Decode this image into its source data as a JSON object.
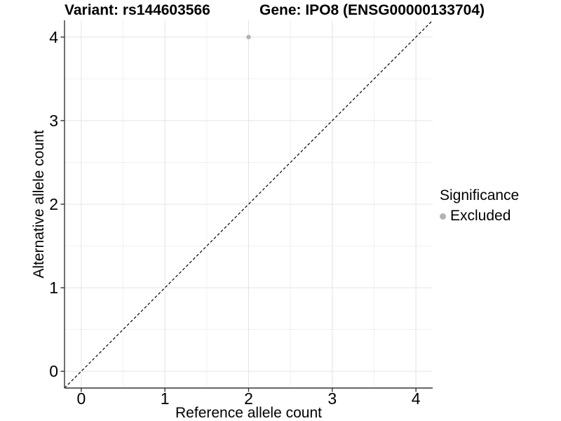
{
  "titles": {
    "variant": "Variant: rs144603566",
    "gene": "Gene: IPO8 (ENSG00000133704)"
  },
  "chart_data": {
    "type": "scatter",
    "title_left": "Variant: rs144603566",
    "title_right": "Gene: IPO8 (ENSG00000133704)",
    "xlabel": "Reference allele count",
    "ylabel": "Alternative allele count",
    "xlim": [
      -0.2,
      4.2
    ],
    "ylim": [
      -0.2,
      4.2
    ],
    "x_ticks": [
      0,
      1,
      2,
      3,
      4
    ],
    "y_ticks": [
      0,
      1,
      2,
      3,
      4
    ],
    "x_minor_ticks": [
      0.5,
      1.5,
      2.5,
      3.5
    ],
    "y_minor_ticks": [
      0.5,
      1.5,
      2.5,
      3.5
    ],
    "grid": true,
    "series": [
      {
        "name": "Excluded",
        "points": [
          {
            "x": 2,
            "y": 4
          }
        ]
      }
    ],
    "identity_line": {
      "style": "dashed",
      "from": -0.2,
      "to": 4.2
    },
    "legend": {
      "position": "right",
      "title": "Significance",
      "items": [
        {
          "label": "Excluded",
          "color": "#b3b3b3"
        }
      ]
    }
  },
  "colors": {
    "point": "#b3b3b3",
    "legend_dot": "#b3b3b3",
    "grid_major": "#e4e4e4",
    "grid_minor": "#f1f1f1",
    "axis_line": "#333333",
    "tick_mark": "#333333",
    "identity_line": "#000000",
    "background": "#ffffff",
    "text": "#000000"
  }
}
